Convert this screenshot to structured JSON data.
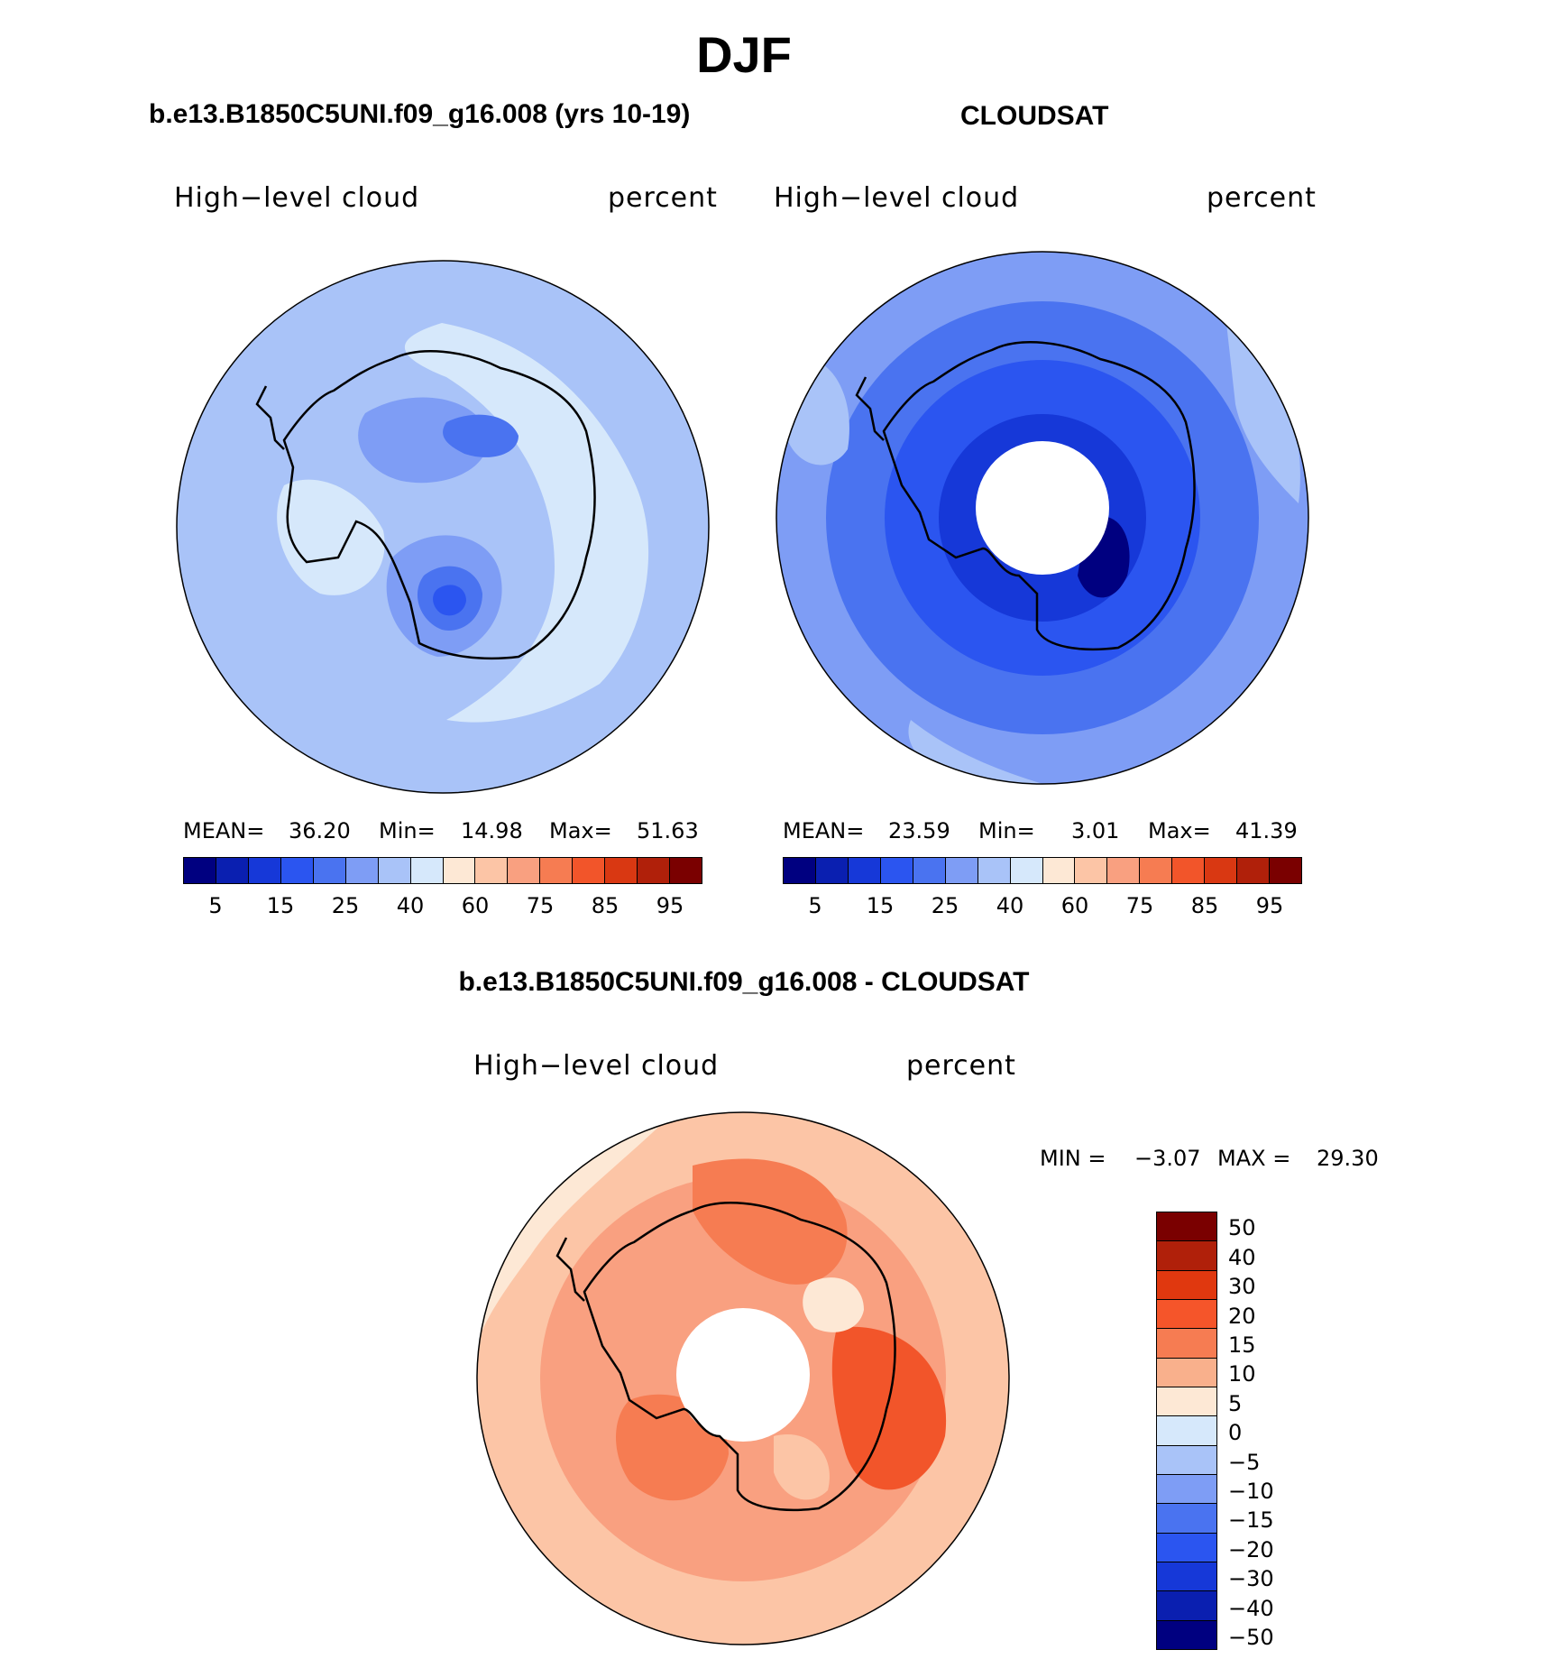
{
  "season": "DJF",
  "panels": {
    "model": {
      "title": "b.e13.B1850C5UNI.f09_g16.008 (yrs 10-19)",
      "variable": "High−level cloud",
      "units": "percent",
      "mean_label": "MEAN=",
      "mean": "36.20",
      "min_label": "Min=",
      "min": "14.98",
      "max_label": "Max=",
      "max": "51.63"
    },
    "obs": {
      "title": "CLOUDSAT",
      "variable": "High−level cloud",
      "units": "percent",
      "mean_label": "MEAN=",
      "mean": "23.59",
      "min_label": "Min=",
      "min": "3.01",
      "max_label": "Max=",
      "max": "41.39"
    },
    "diff": {
      "title": "b.e13.B1850C5UNI.f09_g16.008 - CLOUDSAT",
      "variable": "High−level cloud",
      "units": "percent",
      "min_label": "MIN =",
      "min": "−3.07",
      "max_label": "MAX =",
      "max": "29.30"
    }
  },
  "colorbar_main": {
    "colors": [
      "#000080",
      "#0a1fb0",
      "#1638d8",
      "#2b55f0",
      "#4a73f0",
      "#7e9df5",
      "#a9c3f8",
      "#d6e8fb",
      "#fde8d5",
      "#fcc5a6",
      "#f9a080",
      "#f67c52",
      "#f2552a",
      "#d93812",
      "#b0200a",
      "#7a0000"
    ],
    "ticks": [
      "5",
      "15",
      "25",
      "40",
      "60",
      "75",
      "85",
      "95"
    ]
  },
  "colorbar_diff": {
    "colors": [
      "#7a0000",
      "#b0200a",
      "#e0380f",
      "#f5552a",
      "#f67c52",
      "#f9b08c",
      "#fde8d5",
      "#d6e8fb",
      "#a9c3f8",
      "#7e9df5",
      "#4a73f0",
      "#2b55f0",
      "#1638d8",
      "#0a1fb0",
      "#000080"
    ],
    "ticks": [
      "50",
      "40",
      "30",
      "20",
      "15",
      "10",
      "5",
      "0",
      "−5",
      "−10",
      "−15",
      "−20",
      "−30",
      "−40",
      "−50"
    ]
  }
}
